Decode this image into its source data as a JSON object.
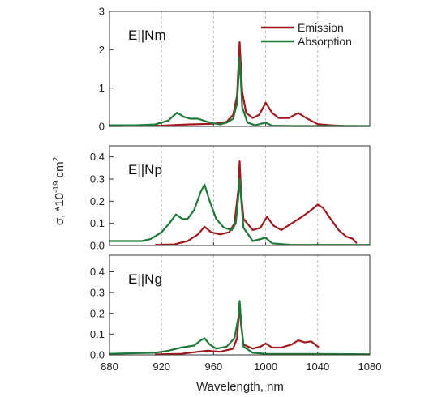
{
  "chart_data": {
    "type": "line",
    "xlabel": "Wavelength, nm",
    "ylabel_main": "σ, *10",
    "ylabel_exp": "-19",
    "ylabel_unit": " cm",
    "ylabel_unit_exp": "2",
    "xlim": [
      880,
      1080
    ],
    "x_ticks": [
      880,
      920,
      960,
      1000,
      1040,
      1080
    ],
    "x_tick_labels": [
      "880",
      "920",
      "960",
      "1000",
      "1040",
      "1080"
    ],
    "grid_x": true,
    "legend_position": "top-right",
    "legend": [
      {
        "name": "Emission",
        "color": "#a0191e"
      },
      {
        "name": "Absorption",
        "color": "#1f7a3a"
      }
    ],
    "panels": [
      {
        "label": "E||Nm",
        "ylim": [
          0,
          3
        ],
        "y_ticks": [
          0,
          1,
          2,
          3
        ],
        "y_tick_labels": [
          "0",
          "1",
          "2",
          "3"
        ],
        "series": [
          {
            "name": "Emission",
            "color": "#a0191e",
            "points": [
              [
                880,
                0.01
              ],
              [
                920,
                0.02
              ],
              [
                940,
                0.05
              ],
              [
                960,
                0.07
              ],
              [
                970,
                0.12
              ],
              [
                975,
                0.3
              ],
              [
                978,
                0.8
              ],
              [
                980,
                2.2
              ],
              [
                982,
                0.9
              ],
              [
                985,
                0.35
              ],
              [
                990,
                0.22
              ],
              [
                995,
                0.3
              ],
              [
                1000,
                0.62
              ],
              [
                1005,
                0.35
              ],
              [
                1010,
                0.22
              ],
              [
                1018,
                0.22
              ],
              [
                1025,
                0.35
              ],
              [
                1032,
                0.2
              ],
              [
                1040,
                0.06
              ],
              [
                1050,
                0.03
              ],
              [
                1060,
                0.01
              ],
              [
                1070,
                0.01
              ]
            ]
          },
          {
            "name": "Absorption",
            "color": "#1f7a3a",
            "points": [
              [
                880,
                0.03
              ],
              [
                900,
                0.03
              ],
              [
                915,
                0.05
              ],
              [
                925,
                0.15
              ],
              [
                932,
                0.36
              ],
              [
                937,
                0.25
              ],
              [
                942,
                0.2
              ],
              [
                948,
                0.2
              ],
              [
                955,
                0.12
              ],
              [
                960,
                0.08
              ],
              [
                965,
                0.05
              ],
              [
                970,
                0.1
              ],
              [
                975,
                0.2
              ],
              [
                978,
                0.6
              ],
              [
                980,
                1.8
              ],
              [
                982,
                0.5
              ],
              [
                986,
                0.1
              ],
              [
                992,
                0.03
              ],
              [
                1000,
                0.1
              ],
              [
                1005,
                0.02
              ],
              [
                1020,
                0.01
              ],
              [
                1080,
                0.01
              ]
            ]
          }
        ]
      },
      {
        "label": "E||Np",
        "ylim": [
          0,
          0.45
        ],
        "y_ticks": [
          0,
          0.1,
          0.2,
          0.3,
          0.4
        ],
        "y_tick_labels": [
          "0.0",
          "0.1",
          "0.2",
          "0.3",
          "0.4"
        ],
        "series": [
          {
            "name": "Emission",
            "color": "#a0191e",
            "points": [
              [
                915,
                0.003
              ],
              [
                930,
                0.005
              ],
              [
                940,
                0.02
              ],
              [
                948,
                0.05
              ],
              [
                953,
                0.085
              ],
              [
                958,
                0.06
              ],
              [
                965,
                0.05
              ],
              [
                972,
                0.06
              ],
              [
                976,
                0.1
              ],
              [
                979,
                0.25
              ],
              [
                980,
                0.38
              ],
              [
                981,
                0.25
              ],
              [
                983,
                0.12
              ],
              [
                990,
                0.07
              ],
              [
                996,
                0.08
              ],
              [
                1001,
                0.13
              ],
              [
                1006,
                0.09
              ],
              [
                1012,
                0.07
              ],
              [
                1020,
                0.1
              ],
              [
                1028,
                0.13
              ],
              [
                1035,
                0.16
              ],
              [
                1040,
                0.185
              ],
              [
                1044,
                0.17
              ],
              [
                1050,
                0.12
              ],
              [
                1056,
                0.07
              ],
              [
                1062,
                0.04
              ],
              [
                1067,
                0.03
              ],
              [
                1070,
                0.01
              ]
            ]
          },
          {
            "name": "Absorption",
            "color": "#1f7a3a",
            "points": [
              [
                880,
                0.02
              ],
              [
                895,
                0.02
              ],
              [
                905,
                0.02
              ],
              [
                912,
                0.03
              ],
              [
                920,
                0.06
              ],
              [
                926,
                0.1
              ],
              [
                931,
                0.14
              ],
              [
                936,
                0.12
              ],
              [
                940,
                0.12
              ],
              [
                945,
                0.16
              ],
              [
                950,
                0.24
              ],
              [
                953,
                0.275
              ],
              [
                957,
                0.2
              ],
              [
                962,
                0.12
              ],
              [
                968,
                0.08
              ],
              [
                974,
                0.07
              ],
              [
                977,
                0.1
              ],
              [
                979,
                0.22
              ],
              [
                980,
                0.3
              ],
              [
                981,
                0.22
              ],
              [
                983,
                0.08
              ],
              [
                990,
                0.02
              ],
              [
                1000,
                0.035
              ],
              [
                1005,
                0.01
              ],
              [
                1020,
                0.003
              ],
              [
                1080,
                0.003
              ]
            ]
          }
        ]
      },
      {
        "label": "E||Ng",
        "ylim": [
          0,
          0.48
        ],
        "y_ticks": [
          0,
          0.1,
          0.2,
          0.3,
          0.4
        ],
        "y_tick_labels": [
          "0.0",
          "0.1",
          "0.2",
          "0.3",
          "0.4"
        ],
        "series": [
          {
            "name": "Emission",
            "color": "#a0191e",
            "points": [
              [
                915,
                0.002
              ],
              [
                935,
                0.005
              ],
              [
                948,
                0.015
              ],
              [
                955,
                0.02
              ],
              [
                965,
                0.015
              ],
              [
                975,
                0.03
              ],
              [
                978,
                0.08
              ],
              [
                980,
                0.24
              ],
              [
                981,
                0.15
              ],
              [
                983,
                0.05
              ],
              [
                990,
                0.03
              ],
              [
                996,
                0.04
              ],
              [
                1000,
                0.055
              ],
              [
                1005,
                0.035
              ],
              [
                1012,
                0.035
              ],
              [
                1020,
                0.05
              ],
              [
                1025,
                0.07
              ],
              [
                1030,
                0.06
              ],
              [
                1035,
                0.065
              ],
              [
                1040,
                0.04
              ],
              [
                1041,
                0.04
              ]
            ]
          },
          {
            "name": "Absorption",
            "color": "#1f7a3a",
            "points": [
              [
                880,
                0.005
              ],
              [
                900,
                0.008
              ],
              [
                915,
                0.01
              ],
              [
                925,
                0.02
              ],
              [
                935,
                0.035
              ],
              [
                945,
                0.045
              ],
              [
                950,
                0.07
              ],
              [
                953,
                0.08
              ],
              [
                957,
                0.05
              ],
              [
                962,
                0.03
              ],
              [
                970,
                0.04
              ],
              [
                976,
                0.08
              ],
              [
                979,
                0.18
              ],
              [
                980,
                0.26
              ],
              [
                981,
                0.17
              ],
              [
                983,
                0.04
              ],
              [
                990,
                0.01
              ],
              [
                1000,
                0.005
              ],
              [
                1080,
                0.003
              ]
            ]
          }
        ]
      }
    ]
  }
}
